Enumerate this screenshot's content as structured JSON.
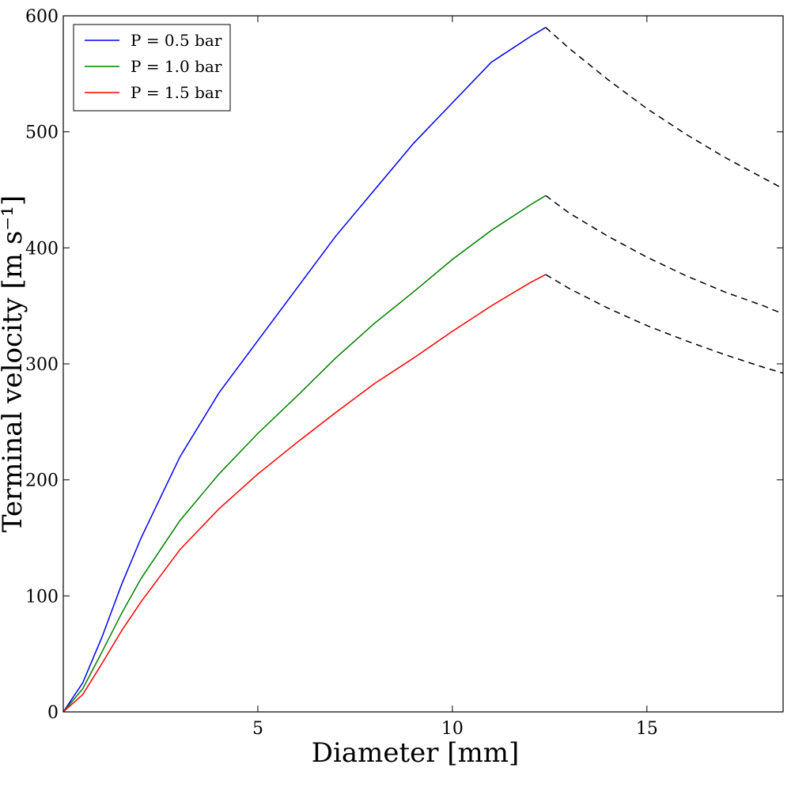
{
  "chart_data": {
    "type": "line",
    "xlabel": "Diameter [mm]",
    "ylabel": "Terminal velocity [m s⁻¹]",
    "xlim": [
      0,
      18.5
    ],
    "ylim": [
      0,
      600
    ],
    "xticks": [
      5,
      10,
      15
    ],
    "yticks": [
      0,
      100,
      200,
      300,
      400,
      500,
      600
    ],
    "grid": false,
    "legend_position": "top-left",
    "series": [
      {
        "name": "P = 0.5 bar",
        "color": "#0000ff",
        "style": "solid",
        "x": [
          0,
          0.5,
          1,
          1.5,
          2,
          3,
          4,
          5,
          6,
          7,
          8,
          9,
          10,
          11,
          12,
          12.4
        ],
        "y": [
          0,
          25,
          65,
          110,
          150,
          220,
          275,
          320,
          365,
          410,
          450,
          490,
          525,
          560,
          582,
          590
        ]
      },
      {
        "name": "P = 1.0 bar",
        "color": "#008000",
        "style": "solid",
        "x": [
          0,
          0.5,
          1,
          1.5,
          2,
          3,
          4,
          5,
          6,
          7,
          8,
          9,
          10,
          11,
          12,
          12.4
        ],
        "y": [
          0,
          20,
          52,
          85,
          115,
          165,
          205,
          240,
          272,
          305,
          335,
          362,
          390,
          415,
          437,
          445
        ]
      },
      {
        "name": "P = 1.5 bar",
        "color": "#ff0000",
        "style": "solid",
        "x": [
          0,
          0.5,
          1,
          1.5,
          2,
          3,
          4,
          5,
          6,
          7,
          8,
          9,
          10,
          11,
          12,
          12.4
        ],
        "y": [
          0,
          15,
          42,
          70,
          95,
          140,
          175,
          205,
          232,
          258,
          283,
          305,
          328,
          350,
          370,
          377
        ]
      },
      {
        "color": "#000000",
        "style": "dashed",
        "x": [
          12.4,
          13,
          14,
          15,
          16,
          17,
          18,
          18.5
        ],
        "y": [
          590,
          572,
          545,
          520,
          498,
          478,
          460,
          451
        ]
      },
      {
        "color": "#000000",
        "style": "dashed",
        "x": [
          12.4,
          13,
          14,
          15,
          16,
          17,
          18,
          18.5
        ],
        "y": [
          445,
          430,
          410,
          392,
          376,
          362,
          350,
          343
        ]
      },
      {
        "color": "#000000",
        "style": "dashed",
        "x": [
          12.4,
          13,
          14,
          15,
          16,
          17,
          18,
          18.5
        ],
        "y": [
          377,
          365,
          348,
          333,
          320,
          308,
          297,
          292
        ]
      }
    ]
  }
}
